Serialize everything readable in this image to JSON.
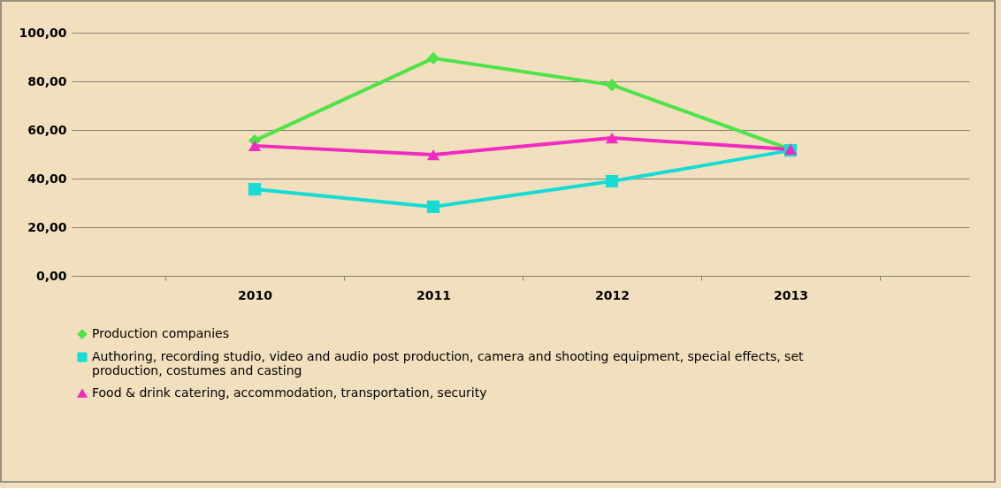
{
  "chart_data": {
    "type": "line",
    "categories": [
      "2010",
      "2011",
      "2012",
      "2013"
    ],
    "series": [
      {
        "name": "Production companies",
        "color": "#4fe34a",
        "marker": "diamond",
        "values": [
          55.6,
          89.5,
          78.5,
          52.0
        ]
      },
      {
        "name": "Authoring, recording studio, video and audio post production, camera and shooting equipment, special effects, set production, costumes and casting",
        "color": "#16dcd4",
        "marker": "square",
        "values": [
          35.6,
          28.4,
          38.9,
          51.6
        ]
      },
      {
        "name": "Food & drink catering, accommodation, transportation, security",
        "color": "#f02cc0",
        "marker": "triangle",
        "values": [
          53.5,
          49.8,
          56.7,
          52.0
        ]
      }
    ],
    "ylim": [
      0,
      100
    ],
    "yticks": [
      {
        "value": 0,
        "label": "0,00"
      },
      {
        "value": 20,
        "label": "20,00"
      },
      {
        "value": 40,
        "label": "40,00"
      },
      {
        "value": 60,
        "label": "60,00"
      },
      {
        "value": 80,
        "label": "80,00"
      },
      {
        "value": 100,
        "label": "100,00"
      }
    ],
    "grid": "y",
    "legend": "bottom"
  }
}
